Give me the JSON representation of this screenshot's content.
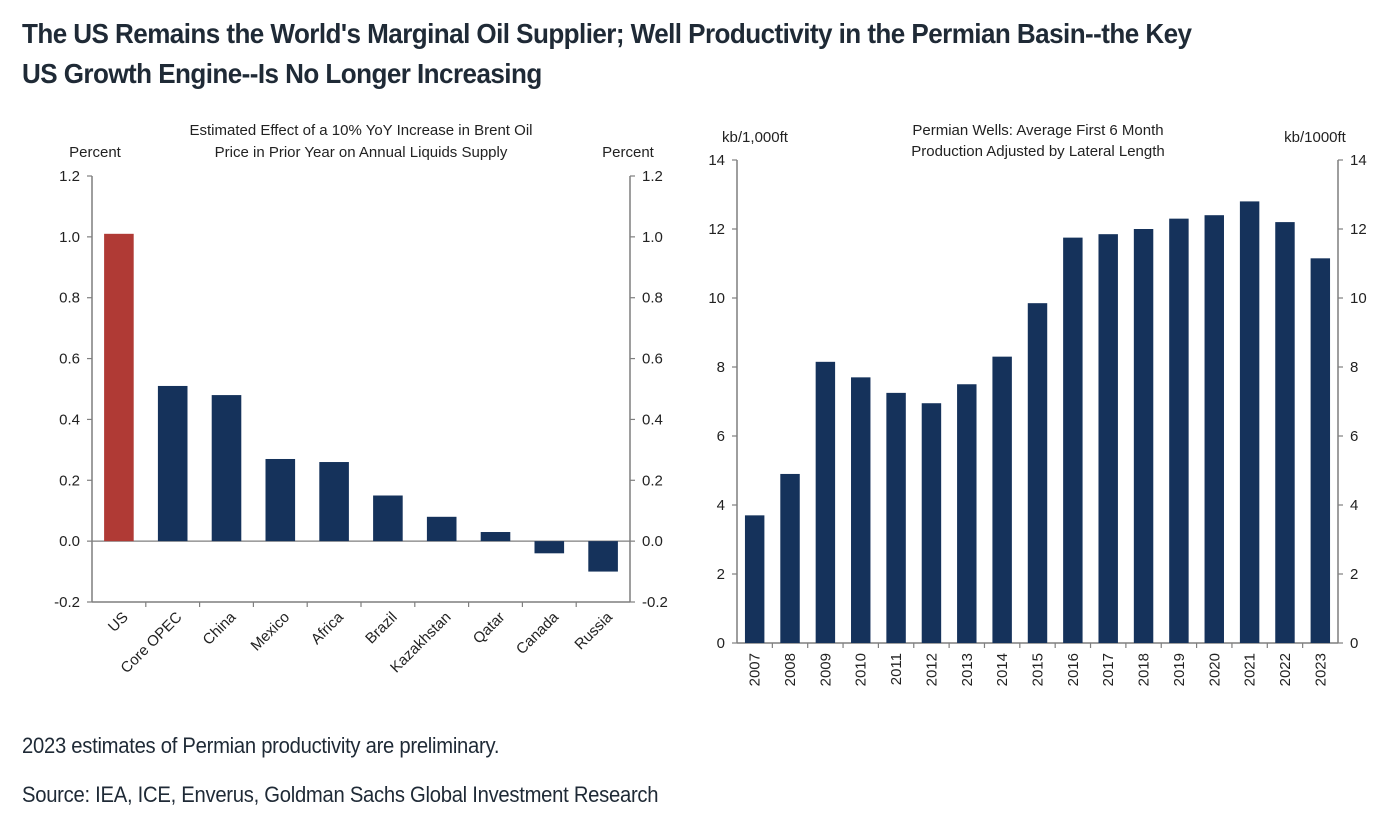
{
  "headline": {
    "line1": "The US Remains the World's Marginal Oil Supplier; Well Productivity in the Permian Basin--the Key",
    "line2": "US Growth Engine--Is No Longer Increasing"
  },
  "footnotes": {
    "note": "2023 estimates of Permian productivity are preliminary.",
    "source": "Source: IEA, ICE, Enverus, Goldman Sachs Global Investment Research"
  },
  "colors": {
    "highlight": "#b03a35",
    "bar": "#15325b",
    "axis": "#7f7f7f"
  },
  "chart_data": [
    {
      "type": "bar",
      "title": "Estimated Effect of a 10% YoY Increase in Brent Oil Price in Prior Year on Annual Liquids Supply",
      "title_lines": [
        "Estimated Effect of a 10% YoY Increase in Brent Oil",
        "Price in Prior Year on Annual Liquids Supply"
      ],
      "ylabel_left": "Percent",
      "ylabel_right": "Percent",
      "xlabel": "",
      "categories": [
        "US",
        "Core OPEC",
        "China",
        "Mexico",
        "Africa",
        "Brazil",
        "Kazakhstan",
        "Qatar",
        "Canada",
        "Russia"
      ],
      "values": [
        1.01,
        0.51,
        0.48,
        0.27,
        0.26,
        0.15,
        0.08,
        0.03,
        -0.04,
        -0.1
      ],
      "highlight_index": 0,
      "ylim": [
        -0.2,
        1.2
      ],
      "yticks": [
        "-0.2",
        "0.0",
        "0.2",
        "0.4",
        "0.6",
        "0.8",
        "1.0",
        "1.2"
      ],
      "ytick_values": [
        -0.2,
        0.0,
        0.2,
        0.4,
        0.6,
        0.8,
        1.0,
        1.2
      ],
      "grid": false,
      "legend": "none"
    },
    {
      "type": "bar",
      "title": "Permian Wells: Average First 6 Month Production Adjusted by Lateral Length",
      "title_lines": [
        "Permian Wells: Average First 6 Month",
        "Production Adjusted by Lateral Length"
      ],
      "ylabel_left": "kb/1,000ft",
      "ylabel_right": "kb/1000ft",
      "xlabel": "",
      "categories": [
        "2007",
        "2008",
        "2009",
        "2010",
        "2011",
        "2012",
        "2013",
        "2014",
        "2015",
        "2016",
        "2017",
        "2018",
        "2019",
        "2020",
        "2021",
        "2022",
        "2023"
      ],
      "values": [
        3.7,
        4.9,
        8.15,
        7.7,
        7.25,
        6.95,
        7.5,
        8.3,
        9.85,
        11.75,
        11.85,
        12.0,
        12.3,
        12.4,
        12.8,
        12.2,
        11.15
      ],
      "ylim": [
        0,
        14
      ],
      "yticks": [
        "0",
        "2",
        "4",
        "6",
        "8",
        "10",
        "12",
        "14"
      ],
      "ytick_values": [
        0,
        2,
        4,
        6,
        8,
        10,
        12,
        14
      ],
      "grid": false,
      "legend": "none"
    }
  ]
}
